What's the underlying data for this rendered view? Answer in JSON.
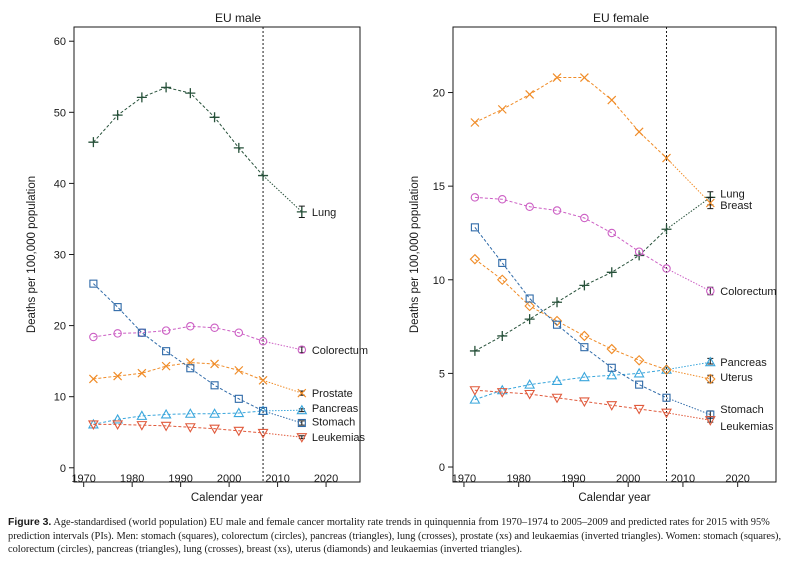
{
  "caption": {
    "label": "Figure 3.",
    "text": "Age-standardised (world population) EU male and female cancer mortality rate trends in quinquennia from 1970–1974 to 2005–2009 and predicted rates for 2015 with 95% prediction intervals (PIs). Men: stomach (squares), colorectum (circles), pancreas (triangles), lung (crosses), prostate (xs) and leukaemias (inverted triangles). Women: stomach (squares), colorectum (circles), pancreas (triangles), lung (crosses), breast (xs), uterus (diamonds) and leukaemias (inverted triangles)."
  },
  "colors": {
    "stomach": "#2f6aa8",
    "colorectum": "#cc5fc4",
    "pancreas": "#3aa6dc",
    "lung": "#27513a",
    "prostate_breast": "#f08c28",
    "uterus": "#f08c28",
    "leukemia": "#e05a3c",
    "axis": "#1a1a1a"
  },
  "chart_data": [
    {
      "type": "line",
      "title": "EU male",
      "xlabel": "Calendar year",
      "ylabel": "Deaths per 100,000 population",
      "xlim": [
        1968,
        2027
      ],
      "ylim": [
        -2,
        62
      ],
      "xticks": [
        1970,
        1980,
        1990,
        2000,
        2010,
        2020
      ],
      "yticks": [
        0,
        10,
        20,
        30,
        40,
        50,
        60
      ],
      "vline": 2007,
      "x": [
        1972,
        1977,
        1982,
        1987,
        1992,
        1997,
        2002,
        2007
      ],
      "prediction_year": 2015,
      "series": [
        {
          "name": "Lung",
          "key": "lung",
          "marker": "plus",
          "values": [
            45.8,
            49.6,
            52.1,
            53.5,
            52.7,
            49.3,
            45.0,
            41.1
          ],
          "prediction": 36.0,
          "pi": [
            35.2,
            36.8
          ],
          "label_y": 36.0
        },
        {
          "name": "Colorectum",
          "key": "colorectum",
          "marker": "circle",
          "values": [
            18.4,
            18.9,
            19.0,
            19.3,
            19.9,
            19.7,
            19.0,
            17.8
          ],
          "prediction": 16.6,
          "pi": [
            16.2,
            17.0
          ],
          "label_y": 16.6
        },
        {
          "name": "Prostate",
          "key": "prostate_breast",
          "marker": "x",
          "values": [
            12.5,
            12.9,
            13.3,
            14.3,
            14.8,
            14.6,
            13.7,
            12.3
          ],
          "prediction": 10.5,
          "pi": [
            10.2,
            10.8
          ],
          "label_y": 10.5
        },
        {
          "name": "Pancreas",
          "key": "pancreas",
          "marker": "triangle",
          "values": [
            6.1,
            6.8,
            7.3,
            7.5,
            7.6,
            7.6,
            7.7,
            8.0
          ],
          "prediction": 8.1,
          "pi": [
            7.9,
            8.3
          ],
          "label_y": 8.4
        },
        {
          "name": "Stomach",
          "key": "stomach",
          "marker": "square",
          "values": [
            25.9,
            22.6,
            19.0,
            16.4,
            14.0,
            11.6,
            9.7,
            8.0
          ],
          "prediction": 6.3,
          "pi": [
            6.0,
            6.6
          ],
          "label_y": 6.5
        },
        {
          "name": "Leukemias",
          "key": "leukemia",
          "marker": "invtriangle",
          "values": [
            6.1,
            6.1,
            6.0,
            5.9,
            5.7,
            5.5,
            5.2,
            4.9
          ],
          "prediction": 4.3,
          "pi": [
            4.1,
            4.5
          ],
          "label_y": 4.3
        }
      ]
    },
    {
      "type": "line",
      "title": "EU female",
      "xlabel": "Calendar year",
      "ylabel": "Deaths per 100,000 population",
      "xlim": [
        1968,
        2027
      ],
      "ylim": [
        -0.8,
        23.5
      ],
      "xticks": [
        1970,
        1980,
        1990,
        2000,
        2010,
        2020
      ],
      "yticks": [
        0,
        5,
        10,
        15,
        20
      ],
      "vline": 2007,
      "x": [
        1972,
        1977,
        1982,
        1987,
        1992,
        1997,
        2002,
        2007
      ],
      "prediction_year": 2015,
      "series": [
        {
          "name": "Lung",
          "key": "lung",
          "marker": "plus",
          "values": [
            6.2,
            7.0,
            7.9,
            8.8,
            9.7,
            10.4,
            11.3,
            12.7
          ],
          "prediction": 14.4,
          "pi": [
            14.0,
            14.7
          ],
          "label_y": 14.6
        },
        {
          "name": "Breast",
          "key": "prostate_breast",
          "marker": "x",
          "values": [
            18.4,
            19.1,
            19.9,
            20.8,
            20.8,
            19.6,
            17.9,
            16.5
          ],
          "prediction": 14.1,
          "pi": [
            13.8,
            14.4
          ],
          "label_y": 14.0
        },
        {
          "name": "Colorectum",
          "key": "colorectum",
          "marker": "circle",
          "values": [
            14.4,
            14.3,
            13.9,
            13.7,
            13.3,
            12.5,
            11.5,
            10.6
          ],
          "prediction": 9.4,
          "pi": [
            9.2,
            9.6
          ],
          "label_y": 9.4
        },
        {
          "name": "Pancreas",
          "key": "pancreas",
          "marker": "triangle",
          "values": [
            3.6,
            4.1,
            4.4,
            4.6,
            4.8,
            4.9,
            5.0,
            5.2
          ],
          "prediction": 5.6,
          "pi": [
            5.5,
            5.8
          ],
          "label_y": 5.6
        },
        {
          "name": "Uterus",
          "key": "uterus",
          "marker": "diamond",
          "values": [
            11.1,
            10.0,
            8.6,
            7.8,
            7.0,
            6.3,
            5.7,
            5.2
          ],
          "prediction": 4.7,
          "pi": [
            4.5,
            4.9
          ],
          "label_y": 4.8
        },
        {
          "name": "Stomach",
          "key": "stomach",
          "marker": "square",
          "values": [
            12.8,
            10.9,
            9.0,
            7.6,
            6.4,
            5.3,
            4.4,
            3.7
          ],
          "prediction": 2.8,
          "pi": [
            2.6,
            3.0
          ],
          "label_y": 3.1
        },
        {
          "name": "Leukemias",
          "key": "leukemia",
          "marker": "invtriangle",
          "values": [
            4.1,
            4.0,
            3.9,
            3.7,
            3.5,
            3.3,
            3.1,
            2.9
          ],
          "prediction": 2.5,
          "pi": [
            2.4,
            2.7
          ],
          "label_y": 2.2
        }
      ]
    }
  ]
}
